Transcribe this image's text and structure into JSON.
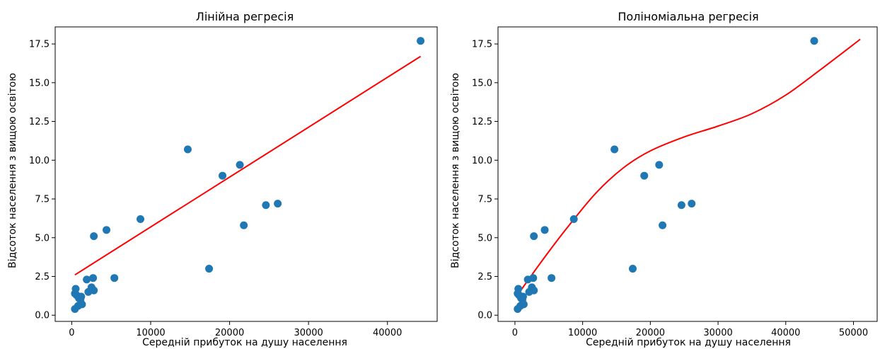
{
  "chart_data": [
    {
      "type": "scatter",
      "title": "Лінійна регресія",
      "xlabel": "Середній прибуток на душу населення",
      "ylabel": "Відсоток населення з вищою освітою",
      "xlim": [
        -2100,
        46300
      ],
      "ylim": [
        -0.4,
        18.6
      ],
      "xticks": [
        0,
        10000,
        20000,
        30000,
        40000
      ],
      "xtick_labels": [
        "0",
        "10000",
        "20000",
        "30000",
        "40000"
      ],
      "yticks": [
        0.0,
        2.5,
        5.0,
        7.5,
        10.0,
        12.5,
        15.0,
        17.5
      ],
      "ytick_labels": [
        "0.0",
        "2.5",
        "5.0",
        "7.5",
        "10.0",
        "12.5",
        "15.0",
        "17.5"
      ],
      "grid": false,
      "series": [
        {
          "kind": "scatter",
          "color": "#1f77b4",
          "x": [
            44200,
            14700,
            21300,
            19100,
            26100,
            24600,
            21800,
            17400,
            8700,
            4400,
            2800,
            5400,
            2700,
            2500,
            2800,
            1900,
            2100,
            1200,
            1100,
            900,
            600,
            400,
            500,
            800,
            1300,
            400
          ],
          "y": [
            17.7,
            10.7,
            9.7,
            9.0,
            7.2,
            7.1,
            5.8,
            3.0,
            6.2,
            5.5,
            5.1,
            2.4,
            2.4,
            1.8,
            1.6,
            2.3,
            1.5,
            1.2,
            1.0,
            1.1,
            1.3,
            1.4,
            1.7,
            0.6,
            0.7,
            0.4
          ]
        },
        {
          "kind": "line",
          "color": "#ff0000",
          "x": [
            400,
            44200
          ],
          "y": [
            2.6,
            16.7
          ]
        }
      ]
    },
    {
      "type": "scatter",
      "title": "Поліноміальна регресія",
      "xlabel": "Середній прибуток на душу населення",
      "ylabel": "Відсоток населення з вищою освітою",
      "xlim": [
        -2500,
        53500
      ],
      "ylim": [
        -0.4,
        18.6
      ],
      "xticks": [
        0,
        10000,
        20000,
        30000,
        40000,
        50000
      ],
      "xtick_labels": [
        "0",
        "10000",
        "20000",
        "30000",
        "40000",
        "50000"
      ],
      "yticks": [
        0.0,
        2.5,
        5.0,
        7.5,
        10.0,
        12.5,
        15.0,
        17.5
      ],
      "ytick_labels": [
        "0.0",
        "2.5",
        "5.0",
        "7.5",
        "10.0",
        "12.5",
        "15.0",
        "17.5"
      ],
      "grid": false,
      "series": [
        {
          "kind": "scatter",
          "color": "#1f77b4",
          "x": [
            44200,
            14700,
            21300,
            19100,
            26100,
            24600,
            21800,
            17400,
            8700,
            4400,
            2800,
            5400,
            2700,
            2500,
            2800,
            1900,
            2100,
            1200,
            1100,
            900,
            600,
            400,
            500,
            800,
            1300,
            400
          ],
          "y": [
            17.7,
            10.7,
            9.7,
            9.0,
            7.2,
            7.1,
            5.8,
            3.0,
            6.2,
            5.5,
            5.1,
            2.4,
            2.4,
            1.8,
            1.6,
            2.3,
            1.5,
            1.2,
            1.0,
            1.1,
            1.3,
            1.4,
            1.7,
            0.6,
            0.7,
            0.4
          ]
        },
        {
          "kind": "line",
          "color": "#ff0000",
          "x": [
            400,
            2000,
            5000,
            8000,
            12000,
            16000,
            20000,
            25000,
            30000,
            35000,
            40000,
            45000,
            51000
          ],
          "y": [
            1.3,
            2.3,
            4.1,
            5.8,
            7.9,
            9.5,
            10.6,
            11.5,
            12.2,
            13.0,
            14.2,
            15.8,
            17.8
          ]
        }
      ]
    }
  ]
}
